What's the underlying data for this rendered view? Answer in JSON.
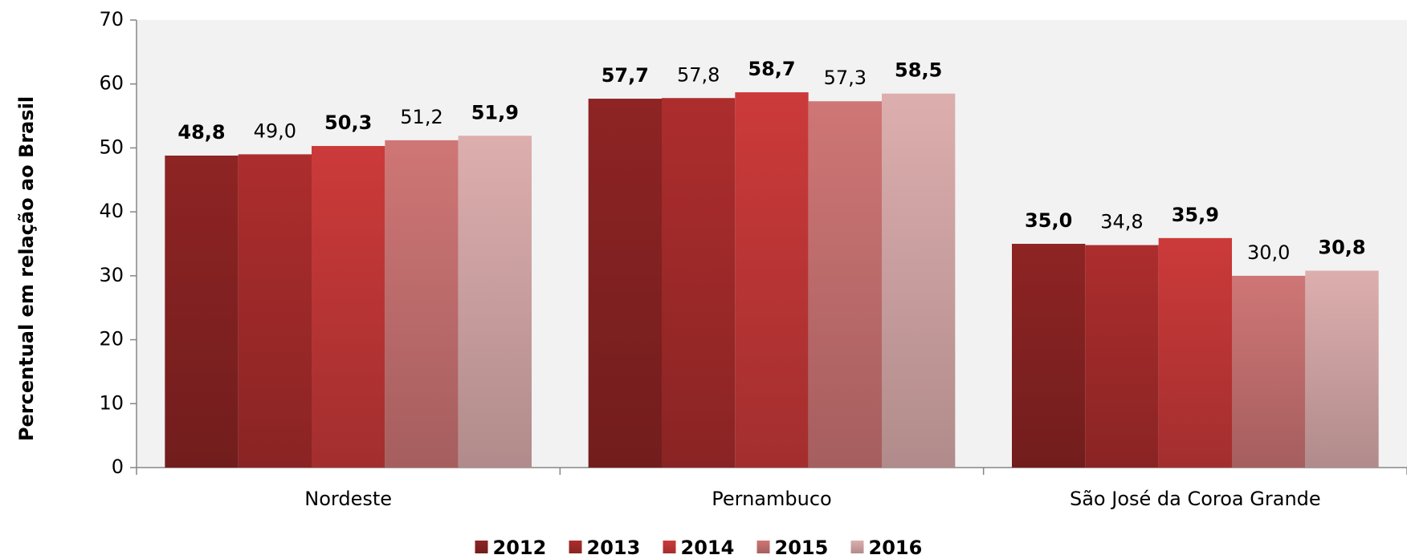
{
  "chart_data": {
    "type": "bar",
    "y_label": "Percentual em relação ao Brasil",
    "categories": [
      "Nordeste",
      "Pernambuco",
      "São José da Coroa Grande"
    ],
    "series": [
      {
        "name": "2012",
        "color": "#8e2424",
        "label_bold": true,
        "values": [
          48.8,
          57.7,
          35.0
        ],
        "value_labels": [
          "48,8",
          "57,7",
          "35,0"
        ]
      },
      {
        "name": "2013",
        "color": "#ad2d2d",
        "label_bold": false,
        "values": [
          49.0,
          57.8,
          34.8
        ],
        "value_labels": [
          "49,0",
          "57,8",
          "34,8"
        ]
      },
      {
        "name": "2014",
        "color": "#cc3a3a",
        "label_bold": true,
        "values": [
          50.3,
          58.7,
          35.9
        ],
        "value_labels": [
          "50,3",
          "58,7",
          "35,9"
        ]
      },
      {
        "name": "2015",
        "color": "#cf7676",
        "label_bold": false,
        "values": [
          51.2,
          57.3,
          30.0
        ],
        "value_labels": [
          "51,2",
          "57,3",
          "30,0"
        ]
      },
      {
        "name": "2016",
        "color": "#ddaeae",
        "label_bold": true,
        "values": [
          51.9,
          58.5,
          30.8
        ],
        "value_labels": [
          "51,9",
          "58,5",
          "30,8"
        ]
      }
    ],
    "ylim": [
      0,
      70
    ],
    "yticks": [
      0,
      10,
      20,
      30,
      40,
      50,
      60,
      70
    ]
  }
}
